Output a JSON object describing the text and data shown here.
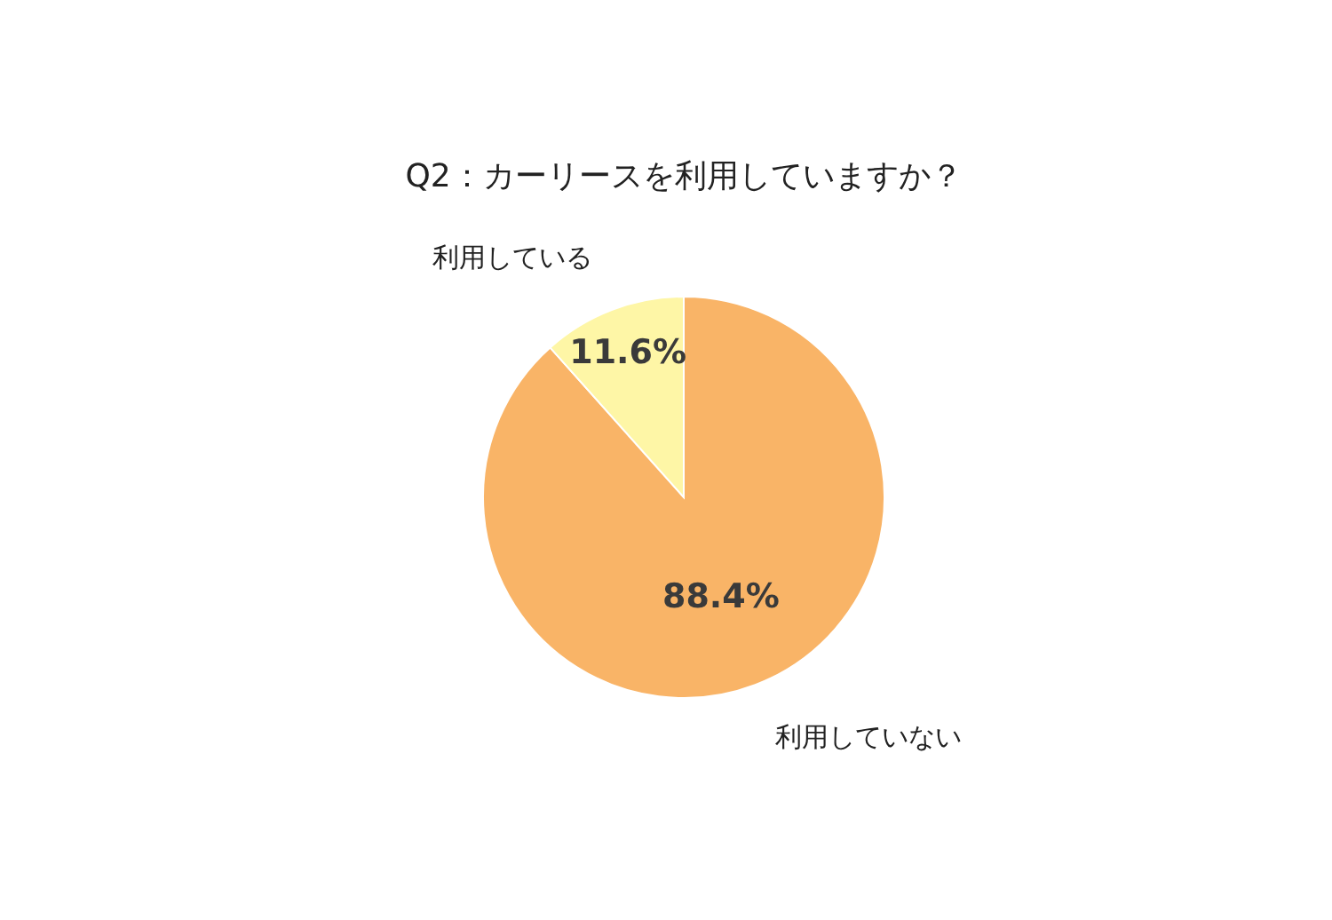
{
  "chart_data": {
    "type": "pie",
    "title": "Q2：カーリースを利用していますか？",
    "categories": [
      "利用していない",
      "利用している"
    ],
    "values": [
      88.4,
      11.6
    ],
    "value_labels": [
      "88.4%",
      "11.6%"
    ],
    "colors": [
      "#f9b467",
      "#fef6a6"
    ]
  }
}
